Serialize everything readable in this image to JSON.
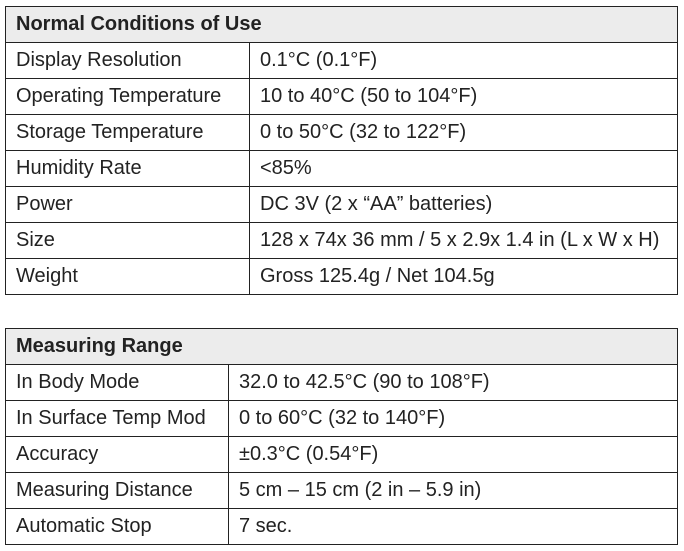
{
  "tables": [
    {
      "title": "Normal Conditions of Use",
      "rows": [
        {
          "label": "Display Resolution",
          "value": "0.1°C (0.1°F)"
        },
        {
          "label": "Operating Temperature",
          "value": "10 to 40°C (50 to 104°F)"
        },
        {
          "label": "Storage Temperature",
          "value": "0 to 50°C (32 to 122°F)"
        },
        {
          "label": "Humidity Rate",
          "value": "<85%"
        },
        {
          "label": "Power",
          "value": "DC 3V (2 x “AA” batteries)"
        },
        {
          "label": "Size",
          "value": "128 x 74x 36 mm / 5 x 2.9x 1.4 in (L x W x H)"
        },
        {
          "label": "Weight",
          "value": "Gross 125.4g / Net 104.5g"
        }
      ]
    },
    {
      "title": "Measuring Range",
      "rows": [
        {
          "label": "In Body Mode",
          "value": "32.0 to 42.5°C (90 to 108°F)"
        },
        {
          "label": "In Surface Temp Mod",
          "value": "0 to 60°C (32 to 140°F)"
        },
        {
          "label": "Accuracy",
          "value": "±0.3°C (0.54°F)"
        },
        {
          "label": "Measuring Distance",
          "value": "5 cm – 15 cm (2 in – 5.9 in)"
        },
        {
          "label": "Automatic Stop",
          "value": "7 sec."
        }
      ]
    }
  ]
}
